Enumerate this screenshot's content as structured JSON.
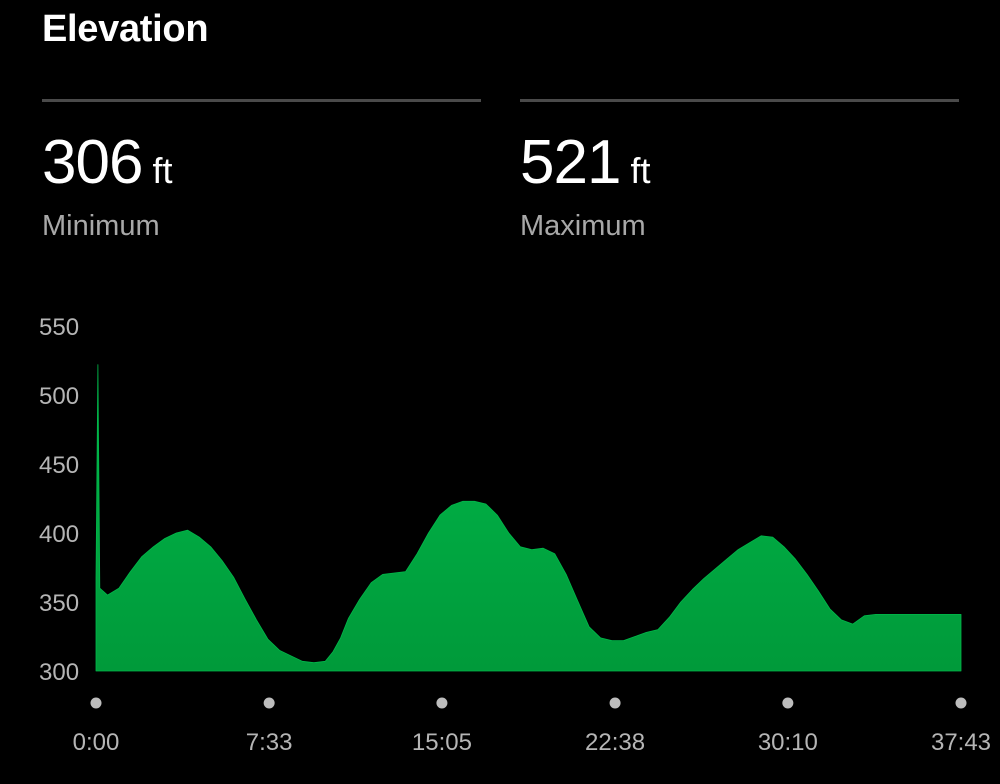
{
  "header": {
    "title": "Elevation"
  },
  "stats": {
    "minimum": {
      "value": "306",
      "unit": "ft",
      "label": "Minimum"
    },
    "maximum": {
      "value": "521",
      "unit": "ft",
      "label": "Maximum"
    }
  },
  "colors": {
    "fill_top": "#00b84a",
    "fill_bottom": "#009a3a",
    "tick_dot": "#bdbdbd",
    "tick_text": "#b5b5b5"
  },
  "chart_data": {
    "type": "area",
    "title": "",
    "xlabel": "",
    "ylabel": "",
    "ylim": [
      300,
      550
    ],
    "yticks": [
      550,
      500,
      450,
      400,
      350,
      300
    ],
    "xticks": [
      "0:00",
      "7:33",
      "15:05",
      "22:38",
      "30:10",
      "37:43"
    ],
    "series": [
      {
        "x": [
          "0:00",
          "0:05",
          "0:10",
          "0:30",
          "1:00",
          "1:30",
          "2:00",
          "2:30",
          "3:00",
          "3:30",
          "4:00",
          "4:30",
          "5:00",
          "5:30",
          "6:00",
          "6:30",
          "7:00",
          "7:30",
          "8:00",
          "8:30",
          "9:00",
          "9:30",
          "10:00",
          "10:20",
          "10:40",
          "11:00",
          "11:30",
          "12:00",
          "12:30",
          "13:00",
          "13:30",
          "14:00",
          "14:30",
          "15:00",
          "15:30",
          "16:00",
          "16:30",
          "17:00",
          "17:30",
          "18:00",
          "18:30",
          "19:00",
          "19:30",
          "20:00",
          "20:30",
          "21:00",
          "21:30",
          "22:00",
          "22:30",
          "23:00",
          "23:30",
          "24:00",
          "24:30",
          "25:00",
          "25:30",
          "26:00",
          "26:30",
          "27:00",
          "27:30",
          "28:00",
          "28:30",
          "29:00",
          "29:30",
          "30:00",
          "30:30",
          "31:00",
          "31:30",
          "32:00",
          "32:30",
          "33:00",
          "33:30",
          "34:00",
          "34:30",
          "35:00",
          "35:30",
          "36:00",
          "36:30",
          "37:00",
          "37:30",
          "37:43"
        ],
        "values": [
          368,
          522,
          360,
          355,
          360,
          372,
          383,
          390,
          396,
          400,
          402,
          397,
          390,
          380,
          368,
          352,
          337,
          323,
          315,
          311,
          307,
          306,
          307,
          314,
          324,
          338,
          352,
          364,
          370,
          371,
          372,
          385,
          400,
          413,
          420,
          423,
          423,
          421,
          413,
          400,
          390,
          388,
          389,
          385,
          370,
          351,
          332,
          324,
          322,
          322,
          325,
          328,
          330,
          339,
          350,
          359,
          367,
          374,
          381,
          388,
          393,
          398,
          397,
          390,
          381,
          370,
          358,
          345,
          337,
          334,
          340,
          341,
          341,
          341,
          341,
          341,
          341,
          341,
          341,
          341
        ]
      }
    ]
  }
}
